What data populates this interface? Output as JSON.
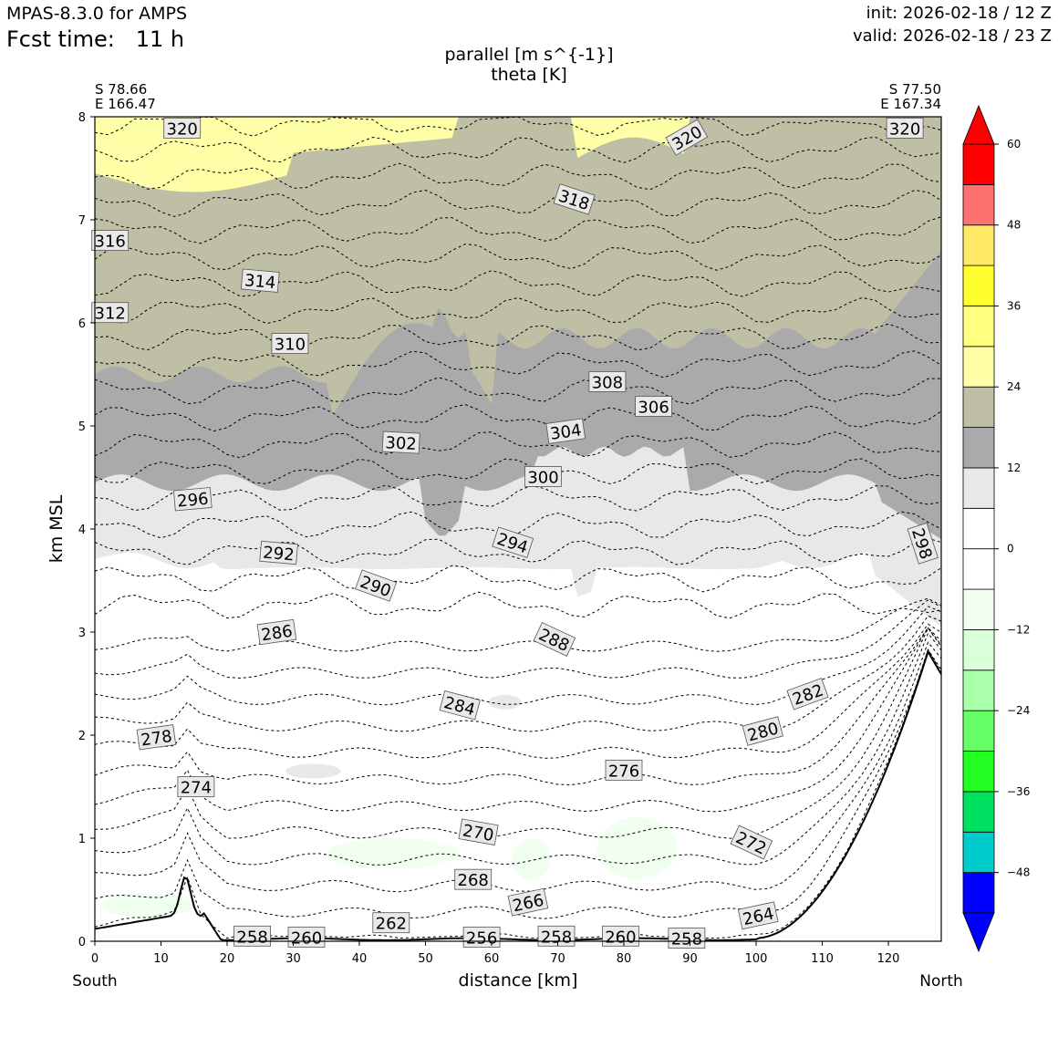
{
  "header": {
    "model": "MPAS-8.3.0 for AMPS",
    "fcst_label": "Fcst time:",
    "fcst_value": "11 h",
    "init": "init: 2026-02-18 / 12 Z",
    "valid": "valid: 2026-02-18 / 23 Z"
  },
  "chart_data": {
    "type": "cross-section",
    "title_line1": "parallel [m s^{-1}]",
    "title_line2": "theta [K]",
    "start_point": {
      "lat": "S 78.66",
      "lon": "E 166.47"
    },
    "end_point": {
      "lat": "S 77.50",
      "lon": "E 167.34"
    },
    "xlabel": "distance [km]",
    "ylabel": "km MSL",
    "x_left_label": "South",
    "x_right_label": "North",
    "xlim": [
      0,
      128
    ],
    "ylim": [
      0,
      8
    ],
    "xticks": [
      "0",
      "10",
      "20",
      "30",
      "40",
      "50",
      "60",
      "70",
      "80",
      "90",
      "100",
      "110",
      "120"
    ],
    "yticks": [
      "0",
      "1",
      "2",
      "3",
      "4",
      "5",
      "6",
      "7",
      "8"
    ],
    "colorbar": {
      "bounds": [
        -54,
        -48,
        -42,
        -36,
        -30,
        -24,
        -18,
        -12,
        -6,
        0,
        6,
        12,
        18,
        24,
        30,
        36,
        42,
        48,
        54,
        60
      ],
      "colors": [
        "#0000ff",
        "#00cccc",
        "#00e060",
        "#22ff22",
        "#66ff66",
        "#aaffaa",
        "#d8ffd8",
        "#f0fff0",
        "#ffffff",
        "#ffffff",
        "#e8e8e8",
        "#aaaaaa",
        "#bfbfa5",
        "#ffffa8",
        "#ffff80",
        "#ffff30",
        "#ffe866",
        "#ff7070",
        "#ff0000"
      ],
      "under_color": "#0000ff",
      "over_color": "#ff0000",
      "tick_labels": [
        "60",
        "48",
        "36",
        "24",
        "12",
        "0",
        "−12",
        "−24",
        "−36",
        "−48"
      ]
    },
    "theta_labels": [
      {
        "text": "320",
        "x": 13.2,
        "y": 7.89,
        "rot": 0
      },
      {
        "text": "320",
        "x": 89.5,
        "y": 7.8,
        "rot": -30
      },
      {
        "text": "320",
        "x": 122.5,
        "y": 7.89,
        "rot": 0
      },
      {
        "text": "318",
        "x": 72.5,
        "y": 7.2,
        "rot": 18
      },
      {
        "text": "316",
        "x": 2.3,
        "y": 6.8,
        "rot": 0
      },
      {
        "text": "314",
        "x": 25.0,
        "y": 6.41,
        "rot": 5
      },
      {
        "text": "312",
        "x": 2.3,
        "y": 6.1,
        "rot": 0
      },
      {
        "text": "310",
        "x": 29.5,
        "y": 5.8,
        "rot": 0
      },
      {
        "text": "308",
        "x": 77.5,
        "y": 5.43,
        "rot": 0
      },
      {
        "text": "306",
        "x": 84.5,
        "y": 5.19,
        "rot": 0
      },
      {
        "text": "304",
        "x": 71.2,
        "y": 4.95,
        "rot": -8
      },
      {
        "text": "302",
        "x": 46.3,
        "y": 4.84,
        "rot": 3
      },
      {
        "text": "300",
        "x": 67.8,
        "y": 4.51,
        "rot": 0
      },
      {
        "text": "298",
        "x": 125.2,
        "y": 3.86,
        "rot": 72
      },
      {
        "text": "296",
        "x": 14.8,
        "y": 4.29,
        "rot": -5
      },
      {
        "text": "294",
        "x": 63.2,
        "y": 3.87,
        "rot": 18
      },
      {
        "text": "292",
        "x": 27.8,
        "y": 3.77,
        "rot": 5
      },
      {
        "text": "290",
        "x": 42.5,
        "y": 3.45,
        "rot": 20
      },
      {
        "text": "288",
        "x": 69.5,
        "y": 2.93,
        "rot": 25
      },
      {
        "text": "286",
        "x": 27.5,
        "y": 3.0,
        "rot": -8
      },
      {
        "text": "284",
        "x": 55.2,
        "y": 2.29,
        "rot": 15
      },
      {
        "text": "282",
        "x": 107.8,
        "y": 2.4,
        "rot": -20
      },
      {
        "text": "280",
        "x": 101.0,
        "y": 2.04,
        "rot": -15
      },
      {
        "text": "278",
        "x": 9.3,
        "y": 1.98,
        "rot": -8
      },
      {
        "text": "276",
        "x": 80.0,
        "y": 1.66,
        "rot": 0
      },
      {
        "text": "274",
        "x": 15.3,
        "y": 1.5,
        "rot": 0
      },
      {
        "text": "272",
        "x": 99.3,
        "y": 0.96,
        "rot": 25
      },
      {
        "text": "270",
        "x": 58.0,
        "y": 1.06,
        "rot": 10
      },
      {
        "text": "268",
        "x": 57.2,
        "y": 0.6,
        "rot": 0
      },
      {
        "text": "266",
        "x": 65.5,
        "y": 0.38,
        "rot": -12
      },
      {
        "text": "264",
        "x": 100.3,
        "y": 0.25,
        "rot": -12
      },
      {
        "text": "262",
        "x": 44.8,
        "y": 0.18,
        "rot": 0
      },
      {
        "text": "260",
        "x": 32.0,
        "y": 0.04,
        "rot": 0
      },
      {
        "text": "260",
        "x": 79.5,
        "y": 0.05,
        "rot": 0
      },
      {
        "text": "258",
        "x": 23.8,
        "y": 0.05,
        "rot": 0
      },
      {
        "text": "258",
        "x": 69.8,
        "y": 0.05,
        "rot": 0
      },
      {
        "text": "258",
        "x": 89.5,
        "y": 0.03,
        "rot": 0
      },
      {
        "text": "256",
        "x": 58.5,
        "y": 0.04,
        "rot": 0
      }
    ]
  }
}
